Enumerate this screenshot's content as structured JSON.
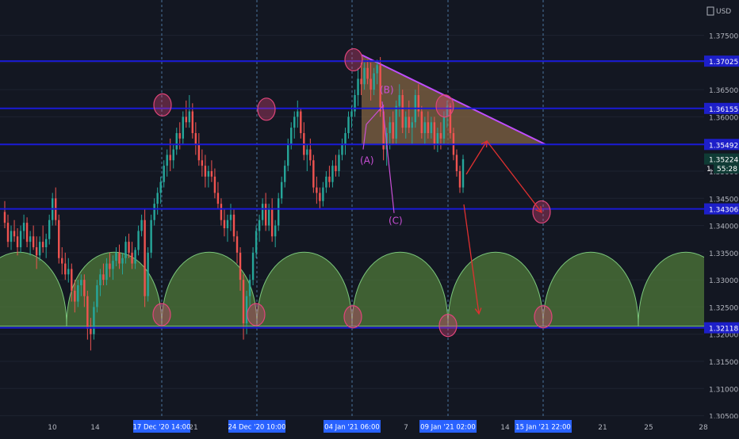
{
  "currency": "USD",
  "countdown": "55:28",
  "colors": {
    "background": "#131722",
    "up": "#26a69a",
    "down": "#ef5350",
    "level_line": "#1a1ad6",
    "level_label_bg": "#1d1fc9",
    "cycle_fill": "#4f7a3a",
    "cycle_stroke": "#7bc67b",
    "triangle_fill": "#8a6a44",
    "triangle_line": "#c04dff",
    "annotation": "#c94fd6",
    "marker": "#e0457a",
    "projection": "#e03030",
    "date_badge": "#2962ff",
    "axis_text": "#b2b5be"
  },
  "chart_data": {
    "type": "candlestick",
    "ylim": [
      1.3045,
      1.3815
    ],
    "y_ticks": [
      "1.37500",
      "1.37000",
      "1.36500",
      "1.36000",
      "1.35500",
      "1.35000",
      "1.34500",
      "1.34000",
      "1.33500",
      "1.33000",
      "1.32500",
      "1.32000",
      "1.31500",
      "1.31000",
      "1.30500"
    ],
    "x_ticks": [
      "10",
      "14",
      "21",
      "7",
      "14",
      "21",
      "25",
      "28"
    ],
    "date_badges": [
      "17 Dec '20  14:00",
      "24 Dec '20  10:00",
      "04 Jan '21  06:00",
      "09 Jan '21  02:00",
      "15 Jan '21  22:00"
    ],
    "horizontal_levels": [
      {
        "value": 1.37025,
        "label": "1.37025"
      },
      {
        "value": 1.36155,
        "label": "1.36155"
      },
      {
        "value": 1.35492,
        "label": "1.35492"
      },
      {
        "value": 1.34306,
        "label": "1.34306"
      },
      {
        "value": 1.32118,
        "label": "1.32118"
      }
    ],
    "current_price": {
      "value": 1.35224,
      "label": "1.35224"
    },
    "countdown_price": 1.3506,
    "annotations": [
      {
        "text": "(A)",
        "price": 1.3514
      },
      {
        "text": "(B)",
        "price": 1.3644
      },
      {
        "text": "(C)",
        "price": 1.3403
      }
    ],
    "cycle_period": "≈1 week",
    "candles": [
      [
        1.3425,
        1.3445,
        1.3395,
        1.3405
      ],
      [
        1.3405,
        1.342,
        1.336,
        1.337
      ],
      [
        1.337,
        1.34,
        1.3355,
        1.339
      ],
      [
        1.339,
        1.341,
        1.337,
        1.338
      ],
      [
        1.338,
        1.3395,
        1.3345,
        1.336
      ],
      [
        1.336,
        1.34,
        1.335,
        1.339
      ],
      [
        1.339,
        1.342,
        1.3375,
        1.3405
      ],
      [
        1.3405,
        1.3415,
        1.336,
        1.337
      ],
      [
        1.337,
        1.339,
        1.3345,
        1.338
      ],
      [
        1.338,
        1.34,
        1.3355,
        1.336
      ],
      [
        1.336,
        1.338,
        1.332,
        1.3345
      ],
      [
        1.3345,
        1.338,
        1.3335,
        1.337
      ],
      [
        1.337,
        1.34,
        1.335,
        1.336
      ],
      [
        1.336,
        1.3385,
        1.334,
        1.3375
      ],
      [
        1.3375,
        1.342,
        1.3365,
        1.341
      ],
      [
        1.341,
        1.346,
        1.34,
        1.345
      ],
      [
        1.345,
        1.347,
        1.34,
        1.341
      ],
      [
        1.341,
        1.342,
        1.333,
        1.334
      ],
      [
        1.334,
        1.336,
        1.331,
        1.333
      ],
      [
        1.333,
        1.335,
        1.33,
        1.331
      ],
      [
        1.331,
        1.334,
        1.3295,
        1.332
      ],
      [
        1.332,
        1.333,
        1.326,
        1.328
      ],
      [
        1.328,
        1.33,
        1.324,
        1.326
      ],
      [
        1.326,
        1.33,
        1.325,
        1.329
      ],
      [
        1.329,
        1.331,
        1.327,
        1.33
      ],
      [
        1.33,
        1.331,
        1.325,
        1.327
      ],
      [
        1.327,
        1.328,
        1.319,
        1.321
      ],
      [
        1.321,
        1.323,
        1.317,
        1.32
      ],
      [
        1.32,
        1.326,
        1.319,
        1.325
      ],
      [
        1.325,
        1.33,
        1.324,
        1.329
      ],
      [
        1.329,
        1.332,
        1.327,
        1.331
      ],
      [
        1.331,
        1.333,
        1.329,
        1.33
      ],
      [
        1.33,
        1.334,
        1.329,
        1.333
      ],
      [
        1.333,
        1.335,
        1.3305,
        1.332
      ],
      [
        1.332,
        1.3345,
        1.33,
        1.3335
      ],
      [
        1.3335,
        1.336,
        1.3325,
        1.335
      ],
      [
        1.335,
        1.3365,
        1.332,
        1.333
      ],
      [
        1.333,
        1.335,
        1.331,
        1.334
      ],
      [
        1.334,
        1.338,
        1.333,
        1.337
      ],
      [
        1.337,
        1.3385,
        1.334,
        1.335
      ],
      [
        1.335,
        1.337,
        1.332,
        1.333
      ],
      [
        1.333,
        1.336,
        1.332,
        1.3355
      ],
      [
        1.3355,
        1.34,
        1.3345,
        1.339
      ],
      [
        1.339,
        1.342,
        1.338,
        1.341
      ],
      [
        1.341,
        1.343,
        1.325,
        1.327
      ],
      [
        1.327,
        1.336,
        1.326,
        1.335
      ],
      [
        1.335,
        1.342,
        1.334,
        1.341
      ],
      [
        1.341,
        1.345,
        1.34,
        1.344
      ],
      [
        1.344,
        1.347,
        1.342,
        1.346
      ],
      [
        1.346,
        1.349,
        1.344,
        1.348
      ],
      [
        1.348,
        1.352,
        1.347,
        1.351
      ],
      [
        1.351,
        1.354,
        1.349,
        1.353
      ],
      [
        1.353,
        1.356,
        1.35,
        1.352
      ],
      [
        1.352,
        1.355,
        1.3505,
        1.354
      ],
      [
        1.354,
        1.358,
        1.353,
        1.357
      ],
      [
        1.357,
        1.359,
        1.354,
        1.356
      ],
      [
        1.356,
        1.361,
        1.355,
        1.36
      ],
      [
        1.36,
        1.363,
        1.358,
        1.359
      ],
      [
        1.359,
        1.364,
        1.358,
        1.361
      ],
      [
        1.361,
        1.3625,
        1.356,
        1.357
      ],
      [
        1.357,
        1.359,
        1.353,
        1.355
      ],
      [
        1.355,
        1.357,
        1.351,
        1.352
      ],
      [
        1.352,
        1.354,
        1.349,
        1.351
      ],
      [
        1.351,
        1.353,
        1.347,
        1.349
      ],
      [
        1.349,
        1.351,
        1.347,
        1.35
      ],
      [
        1.35,
        1.352,
        1.348,
        1.349
      ],
      [
        1.349,
        1.3505,
        1.345,
        1.346
      ],
      [
        1.346,
        1.348,
        1.343,
        1.344
      ],
      [
        1.344,
        1.345,
        1.34,
        1.341
      ],
      [
        1.341,
        1.343,
        1.338,
        1.3395
      ],
      [
        1.3395,
        1.342,
        1.337,
        1.341
      ],
      [
        1.341,
        1.344,
        1.339,
        1.342
      ],
      [
        1.342,
        1.343,
        1.337,
        1.338
      ],
      [
        1.338,
        1.339,
        1.333,
        1.335
      ],
      [
        1.335,
        1.336,
        1.328,
        1.33
      ],
      [
        1.33,
        1.331,
        1.319,
        1.322
      ],
      [
        1.322,
        1.328,
        1.32,
        1.327
      ],
      [
        1.327,
        1.331,
        1.325,
        1.33
      ],
      [
        1.33,
        1.336,
        1.329,
        1.335
      ],
      [
        1.335,
        1.34,
        1.334,
        1.339
      ],
      [
        1.339,
        1.342,
        1.337,
        1.341
      ],
      [
        1.341,
        1.345,
        1.34,
        1.344
      ],
      [
        1.344,
        1.346,
        1.339,
        1.34
      ],
      [
        1.34,
        1.344,
        1.339,
        1.343
      ],
      [
        1.343,
        1.345,
        1.337,
        1.338
      ],
      [
        1.338,
        1.341,
        1.336,
        1.34
      ],
      [
        1.34,
        1.346,
        1.339,
        1.345
      ],
      [
        1.345,
        1.349,
        1.344,
        1.348
      ],
      [
        1.348,
        1.352,
        1.347,
        1.351
      ],
      [
        1.351,
        1.356,
        1.35,
        1.355
      ],
      [
        1.355,
        1.359,
        1.354,
        1.358
      ],
      [
        1.358,
        1.361,
        1.356,
        1.36
      ],
      [
        1.36,
        1.363,
        1.358,
        1.361
      ],
      [
        1.361,
        1.3615,
        1.356,
        1.357
      ],
      [
        1.357,
        1.359,
        1.352,
        1.353
      ],
      [
        1.353,
        1.355,
        1.35,
        1.354
      ],
      [
        1.354,
        1.356,
        1.351,
        1.352
      ],
      [
        1.352,
        1.353,
        1.346,
        1.347
      ],
      [
        1.347,
        1.349,
        1.344,
        1.346
      ],
      [
        1.346,
        1.347,
        1.343,
        1.3445
      ],
      [
        1.3445,
        1.348,
        1.3435,
        1.347
      ],
      [
        1.347,
        1.35,
        1.346,
        1.349
      ],
      [
        1.349,
        1.351,
        1.347,
        1.348
      ],
      [
        1.348,
        1.352,
        1.347,
        1.351
      ],
      [
        1.351,
        1.353,
        1.349,
        1.35
      ],
      [
        1.35,
        1.354,
        1.349,
        1.353
      ],
      [
        1.353,
        1.356,
        1.352,
        1.355
      ],
      [
        1.355,
        1.358,
        1.353,
        1.357
      ],
      [
        1.357,
        1.361,
        1.356,
        1.36
      ],
      [
        1.36,
        1.362,
        1.358,
        1.361
      ],
      [
        1.361,
        1.365,
        1.36,
        1.364
      ],
      [
        1.364,
        1.369,
        1.362,
        1.367
      ],
      [
        1.367,
        1.37,
        1.364,
        1.366
      ],
      [
        1.366,
        1.37,
        1.365,
        1.369
      ],
      [
        1.369,
        1.3705,
        1.366,
        1.367
      ],
      [
        1.367,
        1.37,
        1.363,
        1.365
      ],
      [
        1.365,
        1.369,
        1.364,
        1.368
      ],
      [
        1.368,
        1.3705,
        1.366,
        1.3695
      ],
      [
        1.3695,
        1.371,
        1.36,
        1.361
      ],
      [
        1.361,
        1.362,
        1.352,
        1.354
      ],
      [
        1.354,
        1.358,
        1.351,
        1.357
      ],
      [
        1.357,
        1.36,
        1.354,
        1.359
      ],
      [
        1.359,
        1.361,
        1.355,
        1.356
      ],
      [
        1.356,
        1.363,
        1.355,
        1.362
      ],
      [
        1.362,
        1.366,
        1.36,
        1.364
      ],
      [
        1.364,
        1.365,
        1.357,
        1.358
      ],
      [
        1.358,
        1.361,
        1.356,
        1.36
      ],
      [
        1.36,
        1.363,
        1.357,
        1.358
      ],
      [
        1.358,
        1.36,
        1.355,
        1.359
      ],
      [
        1.359,
        1.365,
        1.358,
        1.364
      ],
      [
        1.364,
        1.366,
        1.36,
        1.361
      ],
      [
        1.361,
        1.362,
        1.356,
        1.357
      ],
      [
        1.357,
        1.36,
        1.355,
        1.359
      ],
      [
        1.359,
        1.361,
        1.356,
        1.357
      ],
      [
        1.357,
        1.36,
        1.356,
        1.359
      ],
      [
        1.359,
        1.36,
        1.354,
        1.355
      ],
      [
        1.355,
        1.358,
        1.3535,
        1.357
      ],
      [
        1.357,
        1.359,
        1.354,
        1.356
      ],
      [
        1.356,
        1.361,
        1.355,
        1.36
      ],
      [
        1.36,
        1.363,
        1.358,
        1.362
      ],
      [
        1.362,
        1.3625,
        1.356,
        1.357
      ],
      [
        1.357,
        1.358,
        1.352,
        1.353
      ],
      [
        1.353,
        1.354,
        1.349,
        1.35
      ],
      [
        1.35,
        1.351,
        1.346,
        1.347
      ],
      [
        1.347,
        1.353,
        1.346,
        1.3522
      ]
    ]
  }
}
